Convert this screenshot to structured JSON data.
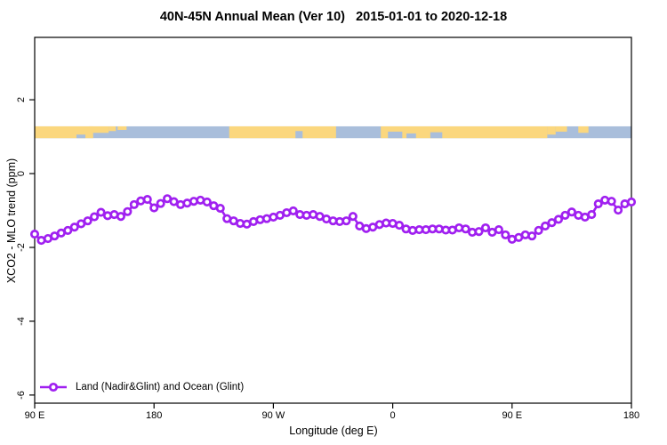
{
  "chart_data": {
    "type": "line",
    "title": "40N-45N Annual Mean (Ver 10)   2015-01-01 to 2020-12-18",
    "xlabel": "Longitude (deg E)",
    "ylabel": "XCO2 - MLO trend (ppm)",
    "ylim": [
      -6.22,
      3.69
    ],
    "y_ticks": [
      2,
      0,
      -2,
      -4,
      -6
    ],
    "y_tick_labels": [
      "2",
      "0",
      "-2",
      "-4",
      "-6"
    ],
    "x_tick_labels": [
      "90 E",
      "180",
      "90 W",
      "0",
      "90 E",
      "180"
    ],
    "x_tick_deg": [
      90,
      180,
      270,
      360,
      450,
      540
    ],
    "x_start_deg": 90,
    "x_end_deg": 540,
    "x_step_deg": 5,
    "grid": false,
    "legend": {
      "position": "bottom-left",
      "label": "Land (Nadir&Glint) and Ocean (Glint)"
    },
    "series": [
      {
        "name": "Land (Nadir&Glint) and Ocean (Glint)",
        "color": "#A020F0",
        "marker": "open-circle",
        "values": [
          -1.64,
          -1.81,
          -1.76,
          -1.69,
          -1.61,
          -1.54,
          -1.45,
          -1.36,
          -1.28,
          -1.17,
          -1.05,
          -1.14,
          -1.11,
          -1.16,
          -1.03,
          -0.84,
          -0.74,
          -0.7,
          -0.93,
          -0.81,
          -0.68,
          -0.76,
          -0.84,
          -0.8,
          -0.75,
          -0.72,
          -0.77,
          -0.87,
          -0.94,
          -1.22,
          -1.28,
          -1.35,
          -1.37,
          -1.3,
          -1.25,
          -1.22,
          -1.18,
          -1.13,
          -1.06,
          -1.01,
          -1.11,
          -1.13,
          -1.11,
          -1.16,
          -1.23,
          -1.28,
          -1.3,
          -1.28,
          -1.16,
          -1.42,
          -1.49,
          -1.45,
          -1.38,
          -1.34,
          -1.35,
          -1.4,
          -1.5,
          -1.54,
          -1.52,
          -1.52,
          -1.5,
          -1.5,
          -1.53,
          -1.53,
          -1.47,
          -1.5,
          -1.59,
          -1.57,
          -1.47,
          -1.59,
          -1.52,
          -1.66,
          -1.78,
          -1.73,
          -1.66,
          -1.69,
          -1.54,
          -1.42,
          -1.33,
          -1.24,
          -1.13,
          -1.04,
          -1.13,
          -1.18,
          -1.11,
          -0.82,
          -0.72,
          -0.75,
          -0.99,
          -0.82,
          -0.77
        ]
      }
    ],
    "map_band": {
      "description": "land-ocean strip for 40N-45N",
      "value_range": [
        0.96,
        1.28
      ],
      "ocean_color": "#A9BEDB",
      "land_color": "#FBD77E",
      "land_segments": [
        {
          "start": 0.0,
          "end": 0.098,
          "align": "full",
          "coverage": 1
        },
        {
          "start": 0.091,
          "end": 0.124,
          "align": "top",
          "coverage": 0.55
        },
        {
          "start": 0.124,
          "end": 0.136,
          "align": "top",
          "coverage": 0.4
        },
        {
          "start": 0.139,
          "end": 0.154,
          "align": "top",
          "coverage": 0.3
        },
        {
          "start": 0.326,
          "end": 0.505,
          "align": "full",
          "coverage": 1
        },
        {
          "start": 0.58,
          "end": 0.859,
          "align": "full",
          "coverage": 1
        },
        {
          "start": 0.859,
          "end": 0.873,
          "align": "top",
          "coverage": 0.7
        },
        {
          "start": 0.873,
          "end": 0.892,
          "align": "top",
          "coverage": 0.45
        },
        {
          "start": 0.911,
          "end": 0.928,
          "align": "top",
          "coverage": 0.55
        }
      ],
      "ocean_patches": [
        {
          "start": 0.07,
          "end": 0.085,
          "align": "bottom",
          "coverage": 0.3
        },
        {
          "start": 0.437,
          "end": 0.449,
          "align": "bottom",
          "coverage": 0.6
        },
        {
          "start": 0.592,
          "end": 0.616,
          "align": "bottom",
          "coverage": 0.55
        },
        {
          "start": 0.623,
          "end": 0.639,
          "align": "bottom",
          "coverage": 0.4
        },
        {
          "start": 0.663,
          "end": 0.683,
          "align": "bottom",
          "coverage": 0.5
        }
      ]
    },
    "colors": {
      "series": "#A020F0",
      "land": "#FBD77E",
      "ocean": "#A9BEDB",
      "axis": "#000000",
      "background": "#ffffff"
    }
  }
}
